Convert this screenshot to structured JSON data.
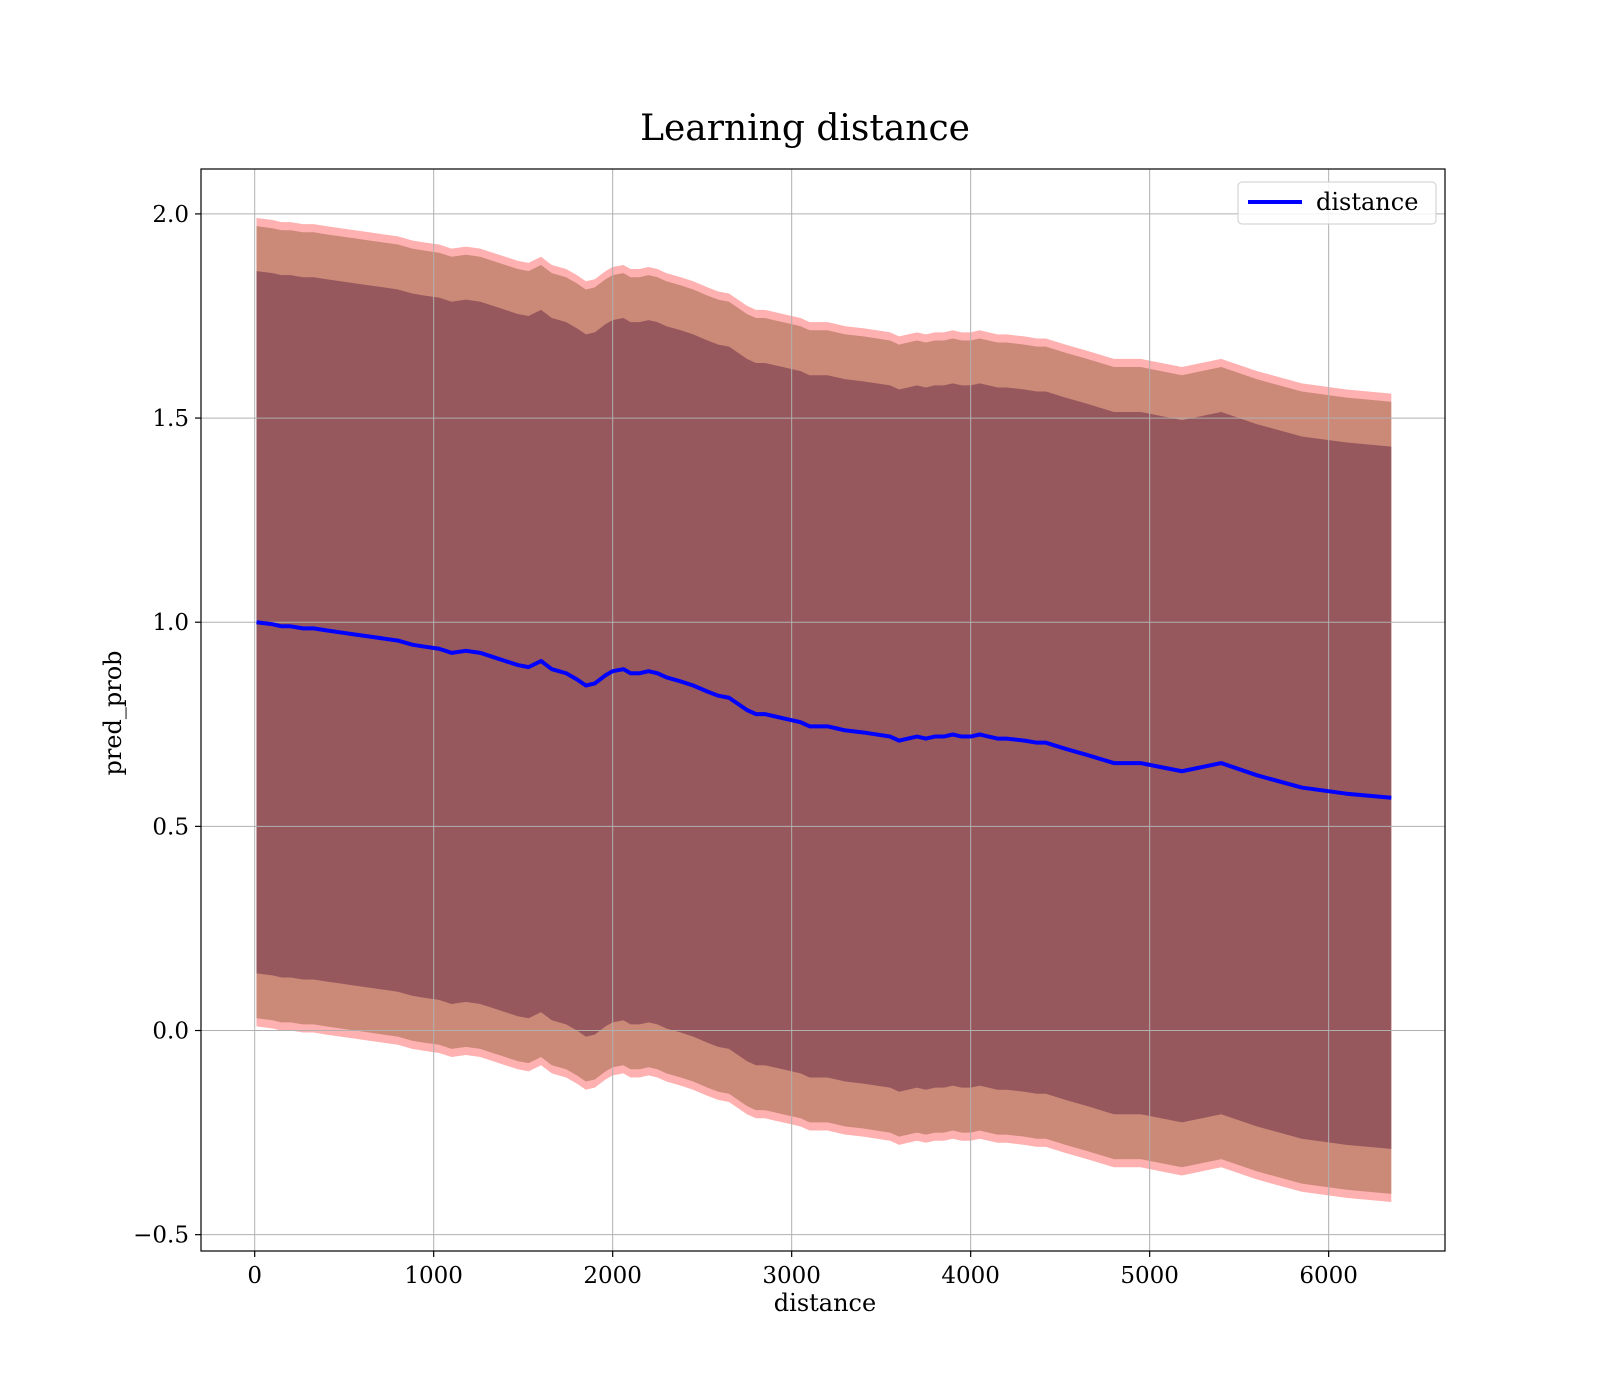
{
  "chart_data": {
    "type": "line",
    "title": "Learning distance",
    "xlabel": "distance",
    "ylabel": "pred_prob",
    "xlim": [
      -300,
      6650
    ],
    "ylim": [
      -0.54,
      2.11
    ],
    "xticks": [
      0,
      1000,
      2000,
      3000,
      4000,
      5000,
      6000
    ],
    "xtick_labels": [
      "0",
      "1000",
      "2000",
      "3000",
      "4000",
      "5000",
      "6000"
    ],
    "yticks": [
      -0.5,
      0.0,
      0.5,
      1.0,
      1.5,
      2.0
    ],
    "ytick_labels": [
      "−0.5",
      "0.0",
      "0.5",
      "1.0",
      "1.5",
      "2.0"
    ],
    "grid": true,
    "legend_position": "top-right",
    "colors": {
      "line": "#0000ff",
      "band_outer": "#ff6f6f",
      "band_middle": "#a06a4a",
      "band_inner": "#6b2e47",
      "grid": "#b0b0b0"
    },
    "series": [
      {
        "name": "distance",
        "x": [
          10,
          100,
          150,
          200,
          270,
          330,
          400,
          480,
          560,
          640,
          720,
          800,
          880,
          950,
          1030,
          1100,
          1180,
          1260,
          1330,
          1400,
          1470,
          1530,
          1600,
          1660,
          1740,
          1800,
          1850,
          1900,
          1960,
          2000,
          2060,
          2100,
          2150,
          2200,
          2250,
          2300,
          2380,
          2450,
          2530,
          2590,
          2650,
          2700,
          2750,
          2800,
          2850,
          2900,
          2950,
          3000,
          3050,
          3100,
          3200,
          3250,
          3300,
          3400,
          3550,
          3600,
          3650,
          3700,
          3750,
          3800,
          3850,
          3900,
          3950,
          4000,
          4050,
          4100,
          4150,
          4200,
          4300,
          4370,
          4420,
          4530,
          4650,
          4800,
          4950,
          5180,
          5400,
          5600,
          5850,
          6100,
          6350
        ],
        "y": [
          1.0,
          0.995,
          0.99,
          0.99,
          0.985,
          0.985,
          0.98,
          0.975,
          0.97,
          0.965,
          0.96,
          0.955,
          0.945,
          0.94,
          0.935,
          0.925,
          0.93,
          0.925,
          0.915,
          0.905,
          0.895,
          0.89,
          0.905,
          0.885,
          0.875,
          0.86,
          0.845,
          0.85,
          0.87,
          0.88,
          0.885,
          0.875,
          0.875,
          0.88,
          0.875,
          0.865,
          0.855,
          0.845,
          0.83,
          0.82,
          0.815,
          0.8,
          0.785,
          0.775,
          0.775,
          0.77,
          0.765,
          0.76,
          0.755,
          0.745,
          0.745,
          0.74,
          0.735,
          0.73,
          0.72,
          0.71,
          0.715,
          0.72,
          0.715,
          0.72,
          0.72,
          0.725,
          0.72,
          0.72,
          0.725,
          0.72,
          0.715,
          0.715,
          0.71,
          0.705,
          0.705,
          0.69,
          0.675,
          0.655,
          0.655,
          0.635,
          0.655,
          0.625,
          0.595,
          0.58,
          0.57
        ],
        "band_inner_halfwidth": [
          0.86,
          0.86,
          0.86,
          0.86,
          0.86,
          0.86,
          0.86,
          0.86,
          0.86,
          0.86,
          0.86,
          0.86,
          0.86,
          0.86,
          0.86,
          0.86,
          0.86,
          0.86,
          0.86,
          0.86,
          0.86,
          0.86,
          0.86,
          0.86,
          0.86,
          0.86,
          0.86,
          0.86,
          0.86,
          0.86,
          0.86,
          0.86,
          0.86,
          0.86,
          0.86,
          0.86,
          0.86,
          0.86,
          0.86,
          0.86,
          0.86,
          0.86,
          0.86,
          0.86,
          0.86,
          0.86,
          0.86,
          0.86,
          0.86,
          0.86,
          0.86,
          0.86,
          0.86,
          0.86,
          0.86,
          0.86,
          0.86,
          0.86,
          0.86,
          0.86,
          0.86,
          0.86,
          0.86,
          0.86,
          0.86,
          0.86,
          0.86,
          0.86,
          0.86,
          0.86,
          0.86,
          0.86,
          0.86,
          0.86,
          0.86,
          0.86,
          0.86,
          0.86,
          0.86,
          0.86,
          0.86
        ],
        "band_middle_halfwidth": [
          0.97,
          0.97,
          0.97,
          0.97,
          0.97,
          0.97,
          0.97,
          0.97,
          0.97,
          0.97,
          0.97,
          0.97,
          0.97,
          0.97,
          0.97,
          0.97,
          0.97,
          0.97,
          0.97,
          0.97,
          0.97,
          0.97,
          0.97,
          0.97,
          0.97,
          0.97,
          0.97,
          0.97,
          0.97,
          0.97,
          0.97,
          0.97,
          0.97,
          0.97,
          0.97,
          0.97,
          0.97,
          0.97,
          0.97,
          0.97,
          0.97,
          0.97,
          0.97,
          0.97,
          0.97,
          0.97,
          0.97,
          0.97,
          0.97,
          0.97,
          0.97,
          0.97,
          0.97,
          0.97,
          0.97,
          0.97,
          0.97,
          0.97,
          0.97,
          0.97,
          0.97,
          0.97,
          0.97,
          0.97,
          0.97,
          0.97,
          0.97,
          0.97,
          0.97,
          0.97,
          0.97,
          0.97,
          0.97,
          0.97,
          0.97,
          0.97,
          0.97,
          0.97,
          0.97,
          0.97,
          0.97
        ],
        "band_outer_halfwidth": [
          0.99,
          0.99,
          0.99,
          0.99,
          0.99,
          0.99,
          0.99,
          0.99,
          0.99,
          0.99,
          0.99,
          0.99,
          0.99,
          0.99,
          0.99,
          0.99,
          0.99,
          0.99,
          0.99,
          0.99,
          0.99,
          0.99,
          0.99,
          0.99,
          0.99,
          0.99,
          0.99,
          0.99,
          0.99,
          0.99,
          0.99,
          0.99,
          0.99,
          0.99,
          0.99,
          0.99,
          0.99,
          0.99,
          0.99,
          0.99,
          0.99,
          0.99,
          0.99,
          0.99,
          0.99,
          0.99,
          0.99,
          0.99,
          0.99,
          0.99,
          0.99,
          0.99,
          0.99,
          0.99,
          0.99,
          0.99,
          0.99,
          0.99,
          0.99,
          0.99,
          0.99,
          0.99,
          0.99,
          0.99,
          0.99,
          0.99,
          0.99,
          0.99,
          0.99,
          0.99,
          0.99,
          0.99,
          0.99,
          0.99,
          0.99,
          0.99,
          0.99,
          0.99,
          0.99,
          0.99,
          0.99
        ]
      }
    ]
  }
}
